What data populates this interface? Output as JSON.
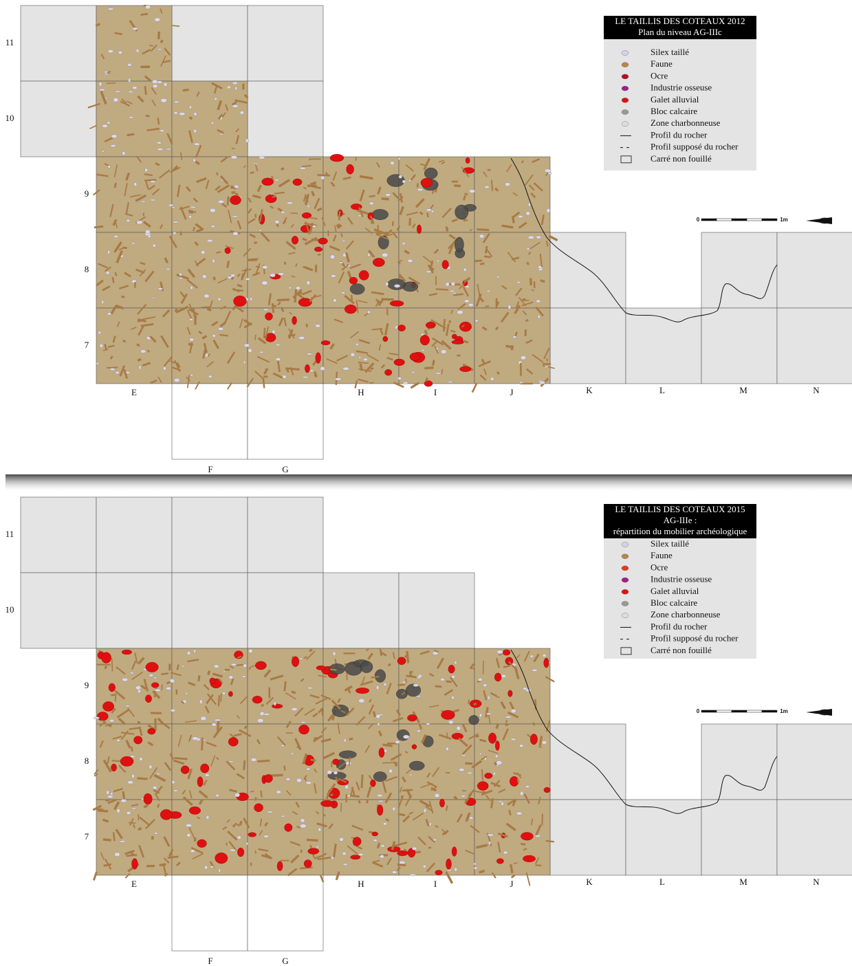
{
  "panels": [
    {
      "title": [
        "LE TAILLIS DES COTEAUX 2012",
        "Plan du niveau AG-IIIc"
      ],
      "legend": [
        "Silex taillé",
        "Faune",
        "Ocre",
        "Industrie osseuse",
        "Galet alluvial",
        "Bloc calcaire",
        "Zone charbonneuse",
        "Profil du rocher",
        "Profil supposé du rocher",
        "Carré non fouillé"
      ],
      "columns": [
        "E",
        "F",
        "G",
        "H",
        "I",
        "J",
        "K",
        "L",
        "M",
        "N"
      ],
      "rows": [
        "11",
        "10",
        "9",
        "8",
        "7"
      ],
      "scale": [
        "0",
        "1m"
      ]
    },
    {
      "title": [
        "LE TAILLIS DES COTEAUX 2015",
        "AG-IIIe :",
        "répartition du mobilier archéologique"
      ],
      "legend": [
        "Silex taillé",
        "Faune",
        "Ocre",
        "Industrie osseuse",
        "Galet alluvial",
        "Bloc calcaire",
        "Zone charbonneuse",
        "Profil du rocher",
        "Profil supposé du rocher",
        "Carré non fouillé"
      ],
      "columns": [
        "E",
        "F",
        "G",
        "H",
        "I",
        "J",
        "K",
        "L",
        "M",
        "N"
      ],
      "rows": [
        "11",
        "10",
        "9",
        "8",
        "7"
      ],
      "scale": [
        "0",
        "1m"
      ]
    }
  ]
}
